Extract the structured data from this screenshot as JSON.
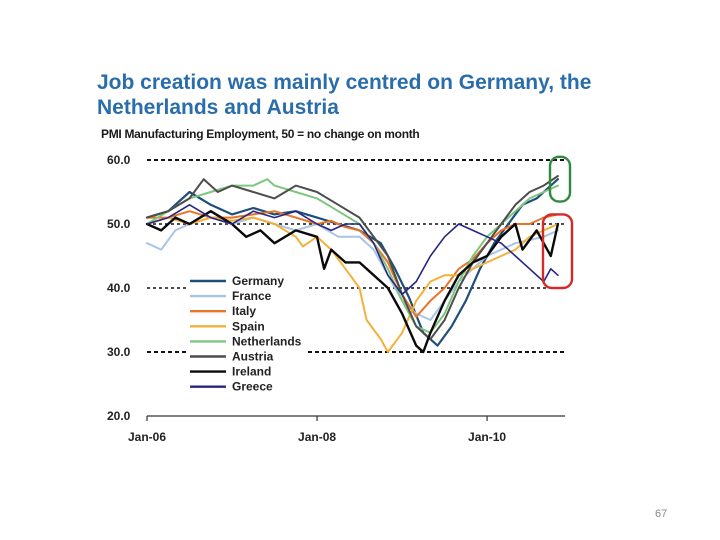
{
  "slide": {
    "page_number": "67"
  },
  "chart_data": {
    "type": "line",
    "title": "Job creation was mainly centred on Germany, the Netherlands and Austria",
    "subtitle": "PMI Manufacturing Employment, 50 = no change on month",
    "title_color": "#2a6dab",
    "y_ticks": [
      "60.0",
      "50.0",
      "40.0",
      "30.0",
      "20.0"
    ],
    "y_tick_values": [
      60,
      50,
      40,
      30,
      20
    ],
    "ylim": [
      20,
      60
    ],
    "dashed_reference_lines": [
      60,
      50,
      40,
      30
    ],
    "x_tick_labels": [
      "Jan-06",
      "Jan-08",
      "Jan-10"
    ],
    "x_tick_months": [
      0,
      24,
      48
    ],
    "x_range_months": [
      0,
      59
    ],
    "month_index_start": "Jan-06",
    "annotations": [
      {
        "name": "highlight-germany-netherlands-austria",
        "color": "#2e8b3a",
        "y_range": [
          53.5,
          60.5
        ]
      },
      {
        "name": "highlight-italy-spain-ireland-greece",
        "color": "#d42a2a",
        "y_range": [
          40,
          51.5
        ]
      }
    ],
    "series": [
      {
        "name": "Germany",
        "color": "#1f4e79",
        "width": 2.2,
        "points": [
          [
            0,
            51
          ],
          [
            3,
            52
          ],
          [
            6,
            55
          ],
          [
            9,
            53
          ],
          [
            12,
            51.5
          ],
          [
            15,
            52.5
          ],
          [
            18,
            51.5
          ],
          [
            21,
            52
          ],
          [
            24,
            51
          ],
          [
            27,
            50
          ],
          [
            30,
            49
          ],
          [
            33,
            47
          ],
          [
            35,
            43
          ],
          [
            37,
            38.5
          ],
          [
            39,
            33
          ],
          [
            41,
            31
          ],
          [
            43,
            34
          ],
          [
            45,
            38
          ],
          [
            47,
            43
          ],
          [
            49,
            47
          ],
          [
            51,
            50
          ],
          [
            53,
            53
          ],
          [
            55,
            54
          ],
          [
            57,
            56
          ],
          [
            58,
            57
          ]
        ]
      },
      {
        "name": "France",
        "color": "#a9c4e4",
        "width": 2,
        "points": [
          [
            0,
            47
          ],
          [
            2,
            46
          ],
          [
            4,
            49
          ],
          [
            6,
            50
          ],
          [
            9,
            51
          ],
          [
            12,
            50
          ],
          [
            15,
            51
          ],
          [
            18,
            50
          ],
          [
            21,
            49
          ],
          [
            24,
            50
          ],
          [
            27,
            48
          ],
          [
            30,
            48
          ],
          [
            32,
            46
          ],
          [
            34,
            42
          ],
          [
            36,
            38
          ],
          [
            38,
            36
          ],
          [
            40,
            35
          ],
          [
            42,
            38
          ],
          [
            44,
            41
          ],
          [
            46,
            43
          ],
          [
            48,
            45
          ],
          [
            50,
            46
          ],
          [
            52,
            47
          ],
          [
            54,
            47.5
          ],
          [
            56,
            48
          ],
          [
            58,
            49
          ]
        ]
      },
      {
        "name": "Italy",
        "color": "#e8742a",
        "width": 2,
        "points": [
          [
            0,
            51
          ],
          [
            3,
            51
          ],
          [
            6,
            52
          ],
          [
            9,
            51
          ],
          [
            12,
            51
          ],
          [
            15,
            51.5
          ],
          [
            18,
            52
          ],
          [
            21,
            51
          ],
          [
            24,
            50
          ],
          [
            26,
            50.5
          ],
          [
            28,
            49.5
          ],
          [
            30,
            49
          ],
          [
            32,
            47
          ],
          [
            34,
            44
          ],
          [
            36,
            39
          ],
          [
            38,
            35.5
          ],
          [
            40,
            38
          ],
          [
            42,
            40
          ],
          [
            44,
            43
          ],
          [
            46,
            44.5
          ],
          [
            48,
            47
          ],
          [
            50,
            49
          ],
          [
            52,
            50
          ],
          [
            54,
            50
          ],
          [
            56,
            51
          ],
          [
            58,
            51.5
          ]
        ]
      },
      {
        "name": "Spain",
        "color": "#f3b13c",
        "width": 2,
        "points": [
          [
            0,
            50
          ],
          [
            3,
            51
          ],
          [
            6,
            50
          ],
          [
            9,
            51
          ],
          [
            12,
            50.5
          ],
          [
            15,
            51
          ],
          [
            18,
            50
          ],
          [
            21,
            48
          ],
          [
            22,
            46.5
          ],
          [
            24,
            48
          ],
          [
            26,
            46
          ],
          [
            28,
            43
          ],
          [
            30,
            40
          ],
          [
            31,
            35
          ],
          [
            33,
            32
          ],
          [
            34,
            30
          ],
          [
            36,
            33
          ],
          [
            38,
            38
          ],
          [
            40,
            41
          ],
          [
            42,
            42
          ],
          [
            44,
            42
          ],
          [
            46,
            43
          ],
          [
            48,
            44
          ],
          [
            50,
            45
          ],
          [
            52,
            46
          ],
          [
            54,
            48
          ],
          [
            56,
            49
          ],
          [
            58,
            50
          ]
        ]
      },
      {
        "name": "Netherlands",
        "color": "#7dc67e",
        "width": 2,
        "points": [
          [
            0,
            50
          ],
          [
            3,
            52
          ],
          [
            6,
            54
          ],
          [
            9,
            55
          ],
          [
            12,
            56
          ],
          [
            15,
            56
          ],
          [
            17,
            57
          ],
          [
            18,
            56
          ],
          [
            21,
            55
          ],
          [
            24,
            54
          ],
          [
            27,
            52
          ],
          [
            30,
            50
          ],
          [
            32,
            47
          ],
          [
            34,
            43
          ],
          [
            36,
            38
          ],
          [
            38,
            34
          ],
          [
            40,
            33
          ],
          [
            42,
            36
          ],
          [
            44,
            41
          ],
          [
            46,
            45
          ],
          [
            48,
            48
          ],
          [
            50,
            50
          ],
          [
            52,
            52
          ],
          [
            54,
            54
          ],
          [
            56,
            55
          ],
          [
            58,
            56
          ]
        ]
      },
      {
        "name": "Austria",
        "color": "#4d4d4d",
        "width": 2,
        "points": [
          [
            0,
            51
          ],
          [
            3,
            52
          ],
          [
            6,
            54
          ],
          [
            8,
            57
          ],
          [
            10,
            55
          ],
          [
            12,
            56
          ],
          [
            15,
            55
          ],
          [
            18,
            54
          ],
          [
            21,
            56
          ],
          [
            24,
            55
          ],
          [
            27,
            53
          ],
          [
            30,
            51
          ],
          [
            32,
            48
          ],
          [
            34,
            45
          ],
          [
            36,
            39
          ],
          [
            38,
            34
          ],
          [
            40,
            32
          ],
          [
            42,
            35
          ],
          [
            44,
            40
          ],
          [
            46,
            44
          ],
          [
            48,
            47
          ],
          [
            50,
            50
          ],
          [
            52,
            53
          ],
          [
            54,
            55
          ],
          [
            56,
            56
          ],
          [
            58,
            57.5
          ]
        ]
      },
      {
        "name": "Ireland",
        "color": "#0a0a0a",
        "width": 2.4,
        "points": [
          [
            0,
            50
          ],
          [
            2,
            49
          ],
          [
            4,
            51
          ],
          [
            6,
            50
          ],
          [
            9,
            52
          ],
          [
            12,
            50
          ],
          [
            14,
            48
          ],
          [
            16,
            49
          ],
          [
            18,
            47
          ],
          [
            21,
            49
          ],
          [
            24,
            48
          ],
          [
            25,
            43
          ],
          [
            26,
            46
          ],
          [
            28,
            44
          ],
          [
            30,
            44
          ],
          [
            32,
            42
          ],
          [
            34,
            40
          ],
          [
            36,
            36
          ],
          [
            38,
            31
          ],
          [
            39,
            30
          ],
          [
            40,
            33
          ],
          [
            42,
            38
          ],
          [
            44,
            42
          ],
          [
            46,
            44
          ],
          [
            48,
            45
          ],
          [
            50,
            48
          ],
          [
            52,
            50
          ],
          [
            53,
            46
          ],
          [
            55,
            49
          ],
          [
            56,
            47
          ],
          [
            57,
            45
          ],
          [
            58,
            50
          ]
        ]
      },
      {
        "name": "Greece",
        "color": "#262680",
        "width": 1.6,
        "points": [
          [
            0,
            50
          ],
          [
            3,
            51
          ],
          [
            6,
            53
          ],
          [
            9,
            51
          ],
          [
            12,
            50
          ],
          [
            15,
            52
          ],
          [
            18,
            51
          ],
          [
            21,
            52
          ],
          [
            24,
            50
          ],
          [
            26,
            49
          ],
          [
            28,
            50
          ],
          [
            30,
            50
          ],
          [
            32,
            47
          ],
          [
            34,
            42
          ],
          [
            36,
            39
          ],
          [
            38,
            41
          ],
          [
            40,
            45
          ],
          [
            42,
            48
          ],
          [
            44,
            50
          ],
          [
            46,
            49
          ],
          [
            48,
            48
          ],
          [
            50,
            47
          ],
          [
            52,
            45
          ],
          [
            54,
            43
          ],
          [
            56,
            41
          ],
          [
            57,
            43
          ],
          [
            58,
            42
          ]
        ]
      }
    ]
  }
}
